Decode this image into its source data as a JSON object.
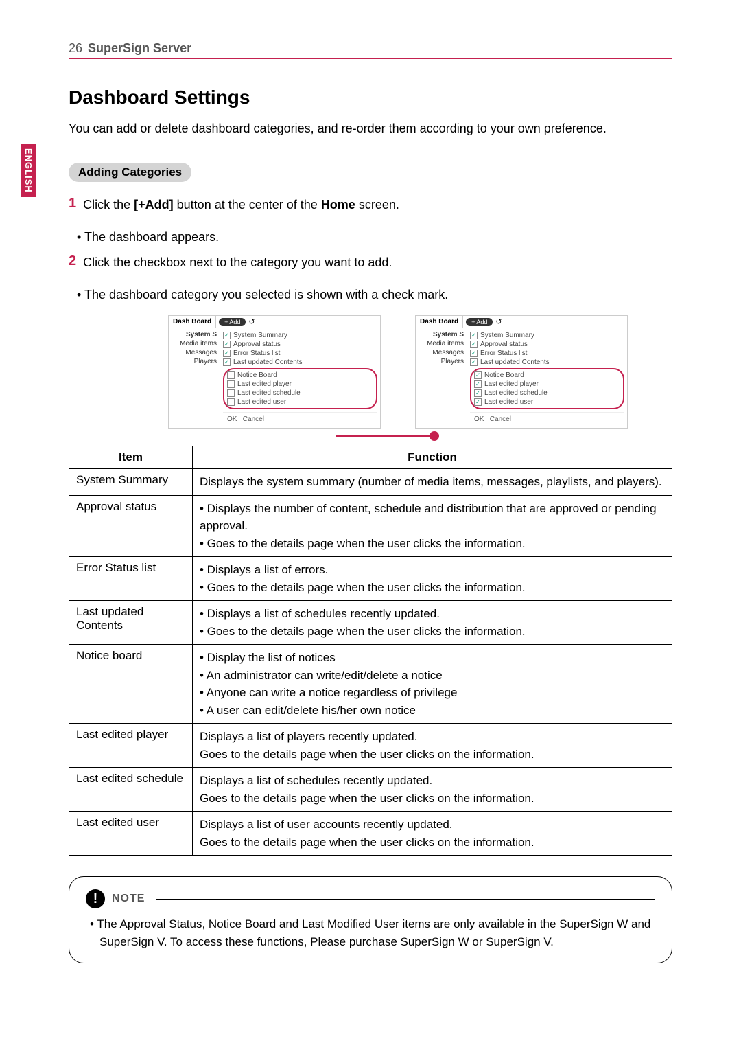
{
  "header": {
    "page_number": "26",
    "title": "SuperSign Server"
  },
  "side_tab": "ENGLISH",
  "h1": "Dashboard Settings",
  "intro": "You can add or delete dashboard categories, and re-order them according to your own preference.",
  "section_title": "Adding Categories",
  "steps": [
    {
      "num": "1",
      "text_pre": "Click the ",
      "bold1": "[+Add]",
      "text_mid": " button at the center of the ",
      "bold2": "Home",
      "text_post": " screen.",
      "sub": "The dashboard appears."
    },
    {
      "num": "2",
      "text": "Click the checkbox next to the category you want to add.",
      "sub": "The dashboard category you selected is shown with a check mark."
    }
  ],
  "shot": {
    "tab_label": "Dash Board",
    "add_label": "+ Add",
    "refresh_icon": "↺",
    "nav": [
      "System S",
      "Media items",
      "Messages",
      "Players"
    ],
    "list_top": [
      {
        "checked": true,
        "label": "System Summary"
      },
      {
        "checked": true,
        "label": "Approval status"
      },
      {
        "checked": true,
        "label": "Error Status list"
      },
      {
        "checked": true,
        "label": "Last updated Contents"
      }
    ],
    "list_group_unchecked": [
      {
        "checked": false,
        "label": "Notice Board"
      },
      {
        "checked": false,
        "label": "Last edited player"
      },
      {
        "checked": false,
        "label": "Last edited schedule"
      },
      {
        "checked": false,
        "label": "Last edited user"
      }
    ],
    "list_group_checked": [
      {
        "checked": true,
        "label": "Notice Board"
      },
      {
        "checked": true,
        "label": "Last edited player"
      },
      {
        "checked": true,
        "label": "Last edited schedule"
      },
      {
        "checked": true,
        "label": "Last edited user"
      }
    ],
    "ok": "OK",
    "cancel": "Cancel"
  },
  "table": {
    "head_item": "Item",
    "head_function": "Function",
    "rows": [
      {
        "item": "System Summary",
        "lines": [
          "Displays the system summary (number of media items, messages, playlists, and players)."
        ]
      },
      {
        "item": "Approval status",
        "lines": [
          "• Displays the number of content, schedule and distribution that are approved or pending approval.",
          "• Goes to the details page when the user clicks the information."
        ]
      },
      {
        "item": "Error Status list",
        "lines": [
          "• Displays a list of errors.",
          "• Goes to the details page when the user clicks the information."
        ]
      },
      {
        "item": "Last updated Contents",
        "lines": [
          "• Displays a list of schedules recently updated.",
          "• Goes to the details page when the user clicks the information."
        ]
      },
      {
        "item": "Notice board",
        "lines": [
          "• Display the list of notices",
          "• An administrator can write/edit/delete a notice",
          "• Anyone can write a notice regardless of privilege",
          "• A user can edit/delete his/her own notice"
        ]
      },
      {
        "item": "Last edited player",
        "lines": [
          "Displays a list of players recently updated.",
          "Goes to the details page when the user clicks on the information."
        ]
      },
      {
        "item": "Last edited schedule",
        "lines": [
          "Displays a list of schedules recently updated.",
          "Goes to the details page when the user clicks on the information."
        ]
      },
      {
        "item": "Last edited user",
        "lines": [
          "Displays a list of user accounts recently updated.",
          "Goes to the details page when the user clicks on the information."
        ]
      }
    ]
  },
  "note": {
    "label": "NOTE",
    "icon": "!",
    "text": "The Approval Status, Notice Board and Last Modified User items are only available in the SuperSign W and SuperSign V. To access these functions, Please purchase SuperSign W or SuperSign V."
  },
  "colors": {
    "accent": "#c5214f",
    "pill_bg": "#d4d4d4",
    "border": "#000000",
    "text": "#000000",
    "muted": "#555555"
  }
}
